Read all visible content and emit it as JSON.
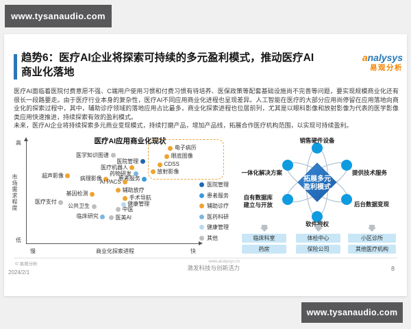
{
  "watermark": {
    "text": "www.tysanaudio.com"
  },
  "logo": {
    "brand_first": "a",
    "brand_rest": "nalysys",
    "cn": "易观分析"
  },
  "slide": {
    "title_line1": "趋势6：医疗AI企业将探索可持续的多元盈利模式，推动医疗AI",
    "title_line2": "商业化落地",
    "paragraph1": "医疗AI面临着医院付费意愿不强、C端用户使用习惯和付费习惯有待培养、医保政策等配套基础设施尚不完善等问题，要实现规模商业化还有很长一段路要走。由于医疗行业本身的复杂性，医疗AI不同应用商业化进程也呈现差异。人工智能在医疗的大部分应用尚停留在应用落地向商业化的探索过程中，其中，辅助诊疗领域的落地应用占比最多，商业化探索进程也位居前列，尤其是以眼科影像和放射影像为代表的医学影像类应用快速推进，持续探索有效的盈利模式。",
    "paragraph2": "未来，医疗AI企业将持续探索多元商业变现模式，持续打磨产品，增加产品线，拓展合作医疗机构范围，以实现可持续盈利。"
  },
  "chart_data": {
    "type": "scatter",
    "title": "医疗AI应用商业化现状",
    "xlabel": "商业化探索进程",
    "ylabel": "市场需求程度",
    "x_min_label": "慢",
    "x_max_label": "快",
    "y_min_label": "低",
    "y_max_label": "高",
    "axis_scale": {
      "x": [
        0,
        100
      ],
      "y": [
        0,
        100
      ]
    },
    "legend_position": "right",
    "grid": false,
    "legend": [
      {
        "label": "医院管理",
        "color": "#1e68b2"
      },
      {
        "label": "患者服务",
        "color": "#3a9ad9"
      },
      {
        "label": "辅助诊疗",
        "color": "#f0a32f"
      },
      {
        "label": "医药科研",
        "color": "#7ab7e0"
      },
      {
        "label": "健康管理",
        "color": "#b5d9ef"
      },
      {
        "label": "其他",
        "color": "#bcbec2"
      }
    ],
    "points": [
      {
        "label": "医学知识图谱",
        "category": "其他",
        "x": 50,
        "y": 86,
        "side": "left"
      },
      {
        "label": "医院管理",
        "category": "医院管理",
        "x": 67,
        "y": 80,
        "side": "left"
      },
      {
        "label": "医疗机器人",
        "category": "辅助诊疗",
        "x": 61,
        "y": 74,
        "side": "left"
      },
      {
        "label": "药物研发",
        "category": "医药科研",
        "x": 63,
        "y": 68,
        "side": "left"
      },
      {
        "label": "患者服务",
        "category": "患者服务",
        "x": 68,
        "y": 63,
        "side": "left"
      },
      {
        "label": "超声影像",
        "category": "辅助诊疗",
        "x": 24,
        "y": 66,
        "side": "left"
      },
      {
        "label": "病理影像",
        "category": "辅助诊疗",
        "x": 46,
        "y": 63,
        "side": "left"
      },
      {
        "label": "AI PACS",
        "category": "辅助诊疗",
        "x": 57,
        "y": 60,
        "side": "left"
      },
      {
        "label": "辅助放疗",
        "category": "辅助诊疗",
        "x": 53,
        "y": 52,
        "side": "right"
      },
      {
        "label": "手术导航",
        "category": "辅助诊疗",
        "x": 57,
        "y": 44,
        "side": "right"
      },
      {
        "label": "健康管理",
        "category": "健康管理",
        "x": 56,
        "y": 38,
        "side": "right"
      },
      {
        "label": "中医",
        "category": "其他",
        "x": 53,
        "y": 33,
        "side": "right"
      },
      {
        "label": "医美AI",
        "category": "其他",
        "x": 49,
        "y": 25,
        "side": "right"
      },
      {
        "label": "临床研究",
        "category": "医药科研",
        "x": 44,
        "y": 26,
        "side": "left"
      },
      {
        "label": "公共卫生",
        "category": "其他",
        "x": 39,
        "y": 36,
        "side": "left"
      },
      {
        "label": "基因检测",
        "category": "辅助诊疗",
        "x": 38,
        "y": 48,
        "side": "left"
      },
      {
        "label": "医疗支付",
        "category": "其他",
        "x": 20,
        "y": 40,
        "side": "left"
      },
      {
        "label": "电子病历",
        "category": "辅助诊疗",
        "x": 83,
        "y": 93,
        "side": "right"
      },
      {
        "label": "眼底图像",
        "category": "辅助诊疗",
        "x": 81,
        "y": 85,
        "side": "right"
      },
      {
        "label": "CDSS",
        "category": "辅助诊疗",
        "x": 77,
        "y": 77,
        "side": "right"
      },
      {
        "label": "放射影像",
        "category": "辅助诊疗",
        "x": 73,
        "y": 70,
        "side": "right"
      }
    ],
    "highlight_box": {
      "x_min": 70,
      "x_max": 113,
      "y_min": 64,
      "y_max": 102,
      "style": "dashed-orange"
    }
  },
  "diagram": {
    "center_line1": "拓展多元",
    "center_line2": "盈利模式",
    "node_top": "销售硬件设备",
    "node_upper_left": "一体化解决方案",
    "node_upper_right": "提供技术服务",
    "node_lower_left_l1": "自有数据库",
    "node_lower_left_l2": "建立与开放",
    "node_lower_right": "后台数据变现",
    "node_bottom": "软件授权",
    "channels": [
      {
        "top": "临床科室",
        "bottom": "药房"
      },
      {
        "top": "体检中心",
        "bottom": "保险公司"
      },
      {
        "top": "小区诊所",
        "bottom": "其他医疗机构"
      }
    ]
  },
  "footer": {
    "chart_source": "© 易观分析",
    "date": "2024/2/1",
    "site": "www.analysys.cn",
    "slogan": "激发科技与创新活力",
    "page": "8"
  },
  "colors": {
    "accent_blue": "#2e75b6",
    "logo_blue": "#2779b8",
    "logo_orange": "#f08300",
    "node_blue": "#0e9be0",
    "diamond_blue": "#1f6ec0",
    "channel_box_blue": "#c8e6f6",
    "watermark_bg": "#58585a",
    "highlight_dash": "#f0a43a"
  }
}
